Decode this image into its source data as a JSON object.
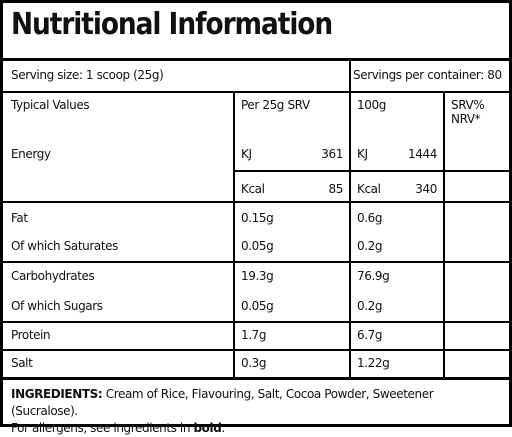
{
  "title": "Nutritional Information",
  "serving": {
    "size_label": "Serving size: 1 scoop (25g)",
    "per_container_label": "Servings per container: 80"
  },
  "headers": {
    "typical": "Typical Values",
    "per_srv": "Per 25g SRV",
    "per_100": "100g",
    "nrv_line1": "SRV%",
    "nrv_line2": "NRV*"
  },
  "energy": {
    "label": "Energy",
    "kj_unit": "KJ",
    "kj_srv": "361",
    "kj_100": "1444",
    "kcal_unit": "Kcal",
    "kcal_srv": "85",
    "kcal_100": "340"
  },
  "rows": [
    {
      "label": "Fat",
      "srv": "0.15g",
      "per100": "0.6g"
    },
    {
      "label": "Of which Saturates",
      "srv": "0.05g",
      "per100": "0.2g"
    },
    {
      "label": "Carbohydrates",
      "srv": "19.3g",
      "per100": "76.9g"
    },
    {
      "label": "Of which Sugars",
      "srv": "0.05g",
      "per100": "0.2g"
    },
    {
      "label": "Protein",
      "srv": "1.7g",
      "per100": "6.7g"
    },
    {
      "label": "Salt",
      "srv": "0.3g",
      "per100": "1.22g"
    }
  ],
  "ingredients": {
    "heading": "INGREDIENTS:",
    "text": " Cream of Rice, Flavouring, Salt, Cocoa Powder, Sweetener (Sucralose).",
    "allergen_prefix": "For allergens, see ingredients in ",
    "allergen_bold": "bold",
    "allergen_suffix": "."
  }
}
